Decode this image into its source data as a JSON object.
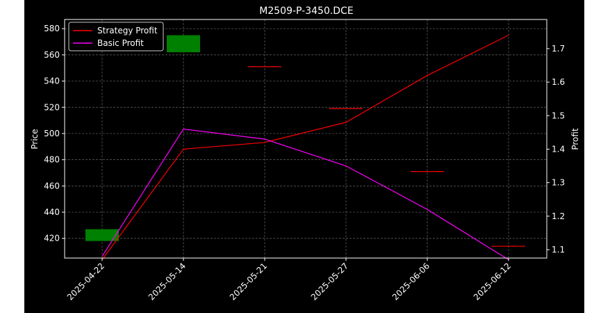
{
  "chart_data": {
    "type": "line",
    "title": "M2509-P-3450.DCE",
    "xlabel": "",
    "ylabel": "Price",
    "y2label": "Profit",
    "categories": [
      "2025-04-22",
      "2025-05-14",
      "2025-05-21",
      "2025-05-27",
      "2025-06-06",
      "2025-06-12"
    ],
    "ylim": [
      405,
      587
    ],
    "y2lim": [
      1.075,
      1.787
    ],
    "yticks": [
      420,
      440,
      460,
      480,
      500,
      520,
      540,
      560,
      580
    ],
    "y2ticks": [
      1.1,
      1.2,
      1.3,
      1.4,
      1.5,
      1.6,
      1.7
    ],
    "candles": [
      {
        "x": "2025-04-22",
        "open": 418,
        "close": 427,
        "color": "#008000"
      },
      {
        "x": "2025-05-14",
        "open": 562,
        "close": 575,
        "color": "#008000"
      },
      {
        "x": "2025-05-21",
        "open": 551,
        "close": 551,
        "color": "#ff0000"
      },
      {
        "x": "2025-05-27",
        "open": 519,
        "close": 519,
        "color": "#ff0000"
      },
      {
        "x": "2025-06-06",
        "open": 471,
        "close": 471,
        "color": "#ff0000"
      },
      {
        "x": "2025-06-12",
        "open": 414,
        "close": 414,
        "color": "#ff0000"
      }
    ],
    "series": [
      {
        "name": "Strategy Profit",
        "color": "#ff0000",
        "values": [
          1.07,
          1.4,
          1.42,
          1.48,
          1.62,
          1.74
        ]
      },
      {
        "name": "Basic Profit",
        "color": "#ff00ff",
        "values": [
          1.08,
          1.46,
          1.43,
          1.35,
          1.22,
          1.07
        ]
      }
    ],
    "grid": true,
    "legend": "top-left"
  }
}
